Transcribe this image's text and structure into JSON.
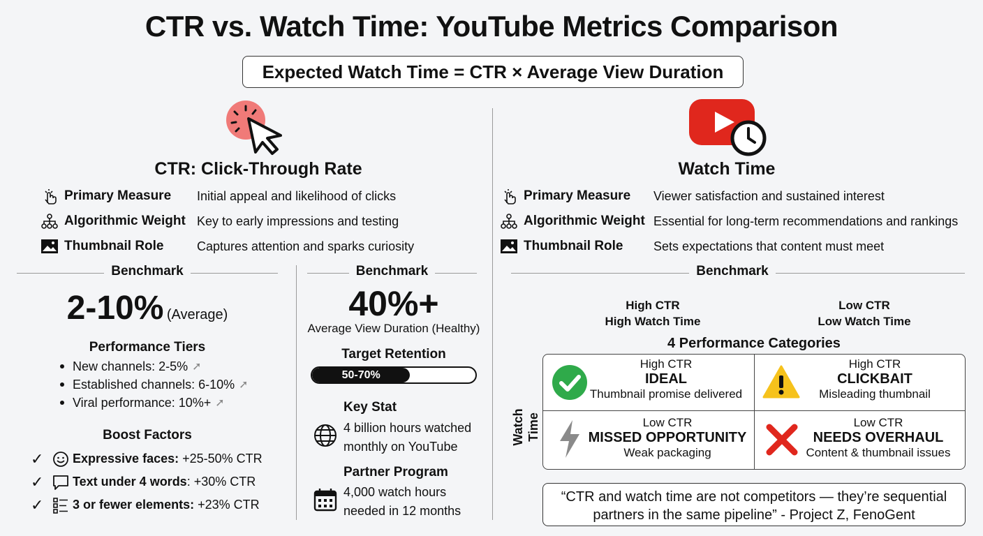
{
  "title": "CTR vs. Watch Time: YouTube Metrics Comparison",
  "formula": "Expected Watch Time = CTR × Average View Duration",
  "ctr": {
    "heading": "CTR: Click-Through Rate",
    "rows": [
      {
        "label": "Primary Measure",
        "value": "Initial appeal and likelihood of clicks"
      },
      {
        "label": "Algorithmic Weight",
        "value": "Key to early impressions and testing"
      },
      {
        "label": "Thumbnail Role",
        "value": "Captures attention and sparks curiosity"
      }
    ],
    "benchmark_label": "Benchmark",
    "benchmark_value": "2-10%",
    "benchmark_note": "(Average)",
    "tiers_title": "Performance Tiers",
    "tiers": [
      "New channels: 2-5%",
      "Established channels: 6-10%",
      "Viral performance: 10%+"
    ],
    "boost_title": "Boost Factors",
    "boost": [
      {
        "bold": "Expressive faces:",
        "rest": " +25-50% CTR"
      },
      {
        "bold": "Text under 4 words",
        "rest": ": +30% CTR"
      },
      {
        "bold": "3 or fewer elements:",
        "rest": " +23% CTR"
      }
    ]
  },
  "mid": {
    "benchmark_label": "Benchmark",
    "value": "40%+",
    "value_note": "Average View Duration (Healthy)",
    "retention_title": "Target Retention",
    "retention_text": "50-70%",
    "retention_fill": 0.6,
    "keystat_title": "Key Stat",
    "keystat_line1": "4 billion hours watched",
    "keystat_line2": "monthly on YouTube",
    "partner_title": "Partner Program",
    "partner_line1": "4,000 watch hours",
    "partner_line2": "needed in 12 months"
  },
  "wt": {
    "heading": "Watch Time",
    "rows": [
      {
        "label": "Primary Measure",
        "value": "Viewer satisfaction and sustained interest"
      },
      {
        "label": "Algorithmic Weight",
        "value": "Essential for long-term recommendations and rankings"
      },
      {
        "label": "Thumbnail Role",
        "value": "Sets expectations that content must meet"
      }
    ],
    "benchmark_label": "Benchmark",
    "col1_a": "High CTR",
    "col1_b": "High Watch Time",
    "col2_a": "Low CTR",
    "col2_b": "Low Watch Time",
    "categories_title": "4 Performance Categories",
    "axis_label_1": "Watch",
    "axis_label_2": "Time",
    "cells": [
      {
        "top": "High CTR",
        "name": "IDEAL",
        "desc": "Thumbnail promise delivered"
      },
      {
        "top": "High CTR",
        "name": "CLICKBAIT",
        "desc": "Misleading thumbnail"
      },
      {
        "top": "Low CTR",
        "name": "MISSED OPPORTUNITY",
        "desc": "Weak packaging"
      },
      {
        "top": "Low CTR",
        "name": "NEEDS OVERHAUL",
        "desc": "Content & thumbnail issues"
      }
    ],
    "quote_line1": "“CTR and watch time are not competitors — they’re sequential",
    "quote_line2": "partners in the same pipeline” - Project Z, FenoGent"
  },
  "colors": {
    "red": "#e0271d",
    "green": "#2faa4a",
    "yellow": "#f6c21c",
    "dark": "#111111"
  },
  "icons": [
    "cursor-click-icon",
    "youtube-clock-icon",
    "tap-hand-icon",
    "hierarchy-icon",
    "image-icon",
    "globe-icon",
    "calendar-icon",
    "smiley-icon",
    "speech-bubble-icon",
    "list-icon",
    "checkmark-icon",
    "check-circle-icon",
    "warning-icon",
    "lightning-icon",
    "x-mark-icon"
  ]
}
